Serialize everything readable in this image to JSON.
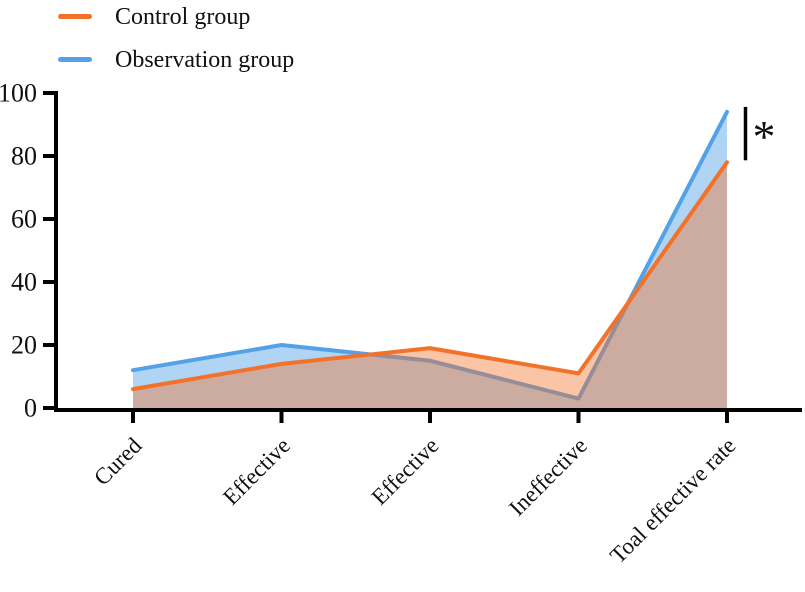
{
  "legend": {
    "items": [
      {
        "label": "Control group",
        "color": "#F3722A"
      },
      {
        "label": "Observation group",
        "color": "#53A1E6"
      }
    ]
  },
  "chart_data": {
    "type": "area",
    "title": "",
    "xlabel": "",
    "ylabel": "",
    "categories": [
      "Cured",
      "Effective",
      "Effective",
      "Ineffective",
      "Toal effective rate"
    ],
    "series": [
      {
        "name": "Control group",
        "color": "#F3722A",
        "fill": "rgba(243,114,42,0.42)",
        "values": [
          6,
          14,
          19,
          11,
          78
        ]
      },
      {
        "name": "Observation group",
        "color": "#53A1E6",
        "fill": "rgba(83,161,230,0.46)",
        "values": [
          12,
          20,
          15,
          3,
          94
        ]
      }
    ],
    "ylim": [
      0,
      100
    ],
    "yticks": [
      0,
      20,
      40,
      60,
      80,
      100
    ],
    "grid": false,
    "legend_position": "top-left",
    "annotation": {
      "label": "*"
    }
  }
}
